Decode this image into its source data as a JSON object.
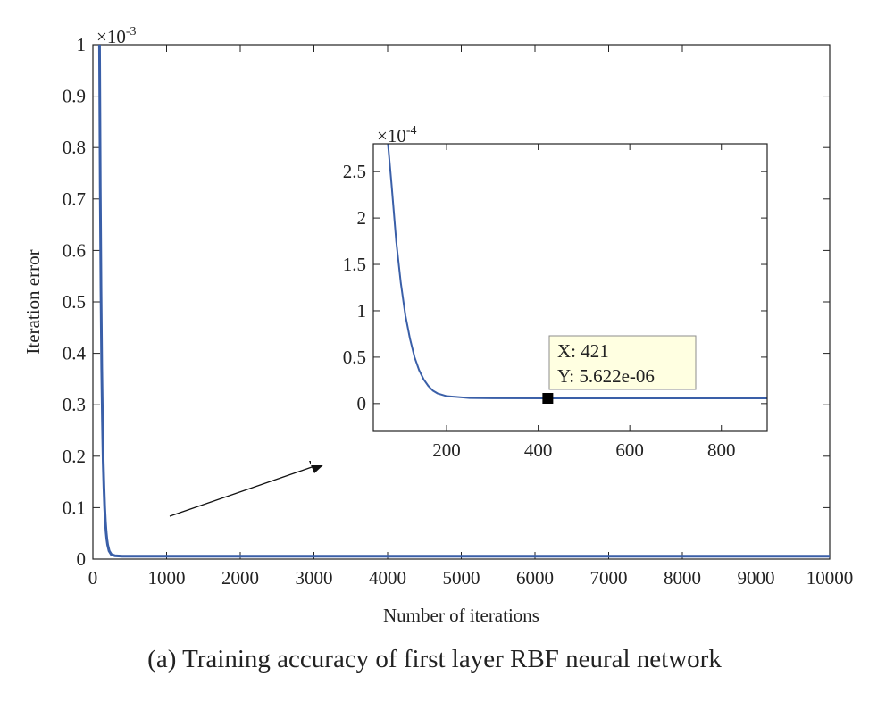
{
  "caption": "(a) Training accuracy of first layer RBF neural network",
  "colors": {
    "series": "#3a5fa8",
    "axes": "#222222",
    "datatip_bg": "#ffffe1",
    "datatip_border": "#8c8c8c",
    "datatip_marker": "#000000"
  },
  "chart_data": [
    {
      "type": "line",
      "name": "main",
      "xlabel": "Number of iterations",
      "ylabel": "Iteration error",
      "xlim": [
        0,
        10000
      ],
      "ylim": [
        0,
        1
      ],
      "y_exponent_label": "×10",
      "y_exponent": "-3",
      "x_ticks": [
        0,
        1000,
        2000,
        3000,
        4000,
        5000,
        6000,
        7000,
        8000,
        9000,
        10000
      ],
      "x_tick_labels": [
        "0",
        "1000",
        "2000",
        "3000",
        "4000",
        "5000",
        "6000",
        "7000",
        "8000",
        "9000",
        "10000"
      ],
      "y_ticks": [
        0,
        0.1,
        0.2,
        0.3,
        0.4,
        0.5,
        0.6,
        0.7,
        0.8,
        0.9,
        1
      ],
      "y_tick_labels": [
        "0",
        "0.1",
        "0.2",
        "0.3",
        "0.4",
        "0.5",
        "0.6",
        "0.7",
        "0.8",
        "0.9",
        "1"
      ],
      "grid": false,
      "series": [
        {
          "x": [
            90,
            100,
            110,
            120,
            130,
            140,
            150,
            160,
            170,
            180,
            190,
            200,
            220,
            250,
            300,
            400,
            1000,
            2000,
            3000,
            4000,
            5000,
            6000,
            7000,
            8000,
            9000,
            10000
          ],
          "y": [
            1.0,
            0.72,
            0.52,
            0.37,
            0.27,
            0.19,
            0.14,
            0.1,
            0.072,
            0.052,
            0.038,
            0.028,
            0.016,
            0.009,
            0.0065,
            0.0056,
            0.0056,
            0.0056,
            0.0056,
            0.0056,
            0.0056,
            0.0056,
            0.0056,
            0.0056,
            0.0056,
            0.0056
          ]
        }
      ]
    },
    {
      "type": "line",
      "name": "inset",
      "xlim": [
        40,
        900
      ],
      "ylim": [
        -0.3,
        2.8
      ],
      "y_exponent_label": "×10",
      "y_exponent": "-4",
      "x_ticks": [
        200,
        400,
        600,
        800
      ],
      "x_tick_labels": [
        "200",
        "400",
        "600",
        "800"
      ],
      "y_ticks": [
        0,
        0.5,
        1,
        1.5,
        2,
        2.5
      ],
      "y_tick_labels": [
        "0",
        "0.5",
        "1",
        "1.5",
        "2",
        "2.5"
      ],
      "grid": false,
      "series": [
        {
          "x": [
            72,
            80,
            90,
            100,
            110,
            120,
            130,
            140,
            150,
            160,
            170,
            180,
            200,
            250,
            300,
            421,
            600,
            900
          ],
          "y": [
            2.8,
            2.35,
            1.75,
            1.3,
            0.95,
            0.7,
            0.5,
            0.36,
            0.26,
            0.19,
            0.14,
            0.11,
            0.08,
            0.06,
            0.057,
            0.05622,
            0.0562,
            0.0562
          ]
        }
      ],
      "datatip": {
        "x": 421,
        "y": 0.05622,
        "line1": "X: 421",
        "line2": "Y: 5.622e-06"
      }
    }
  ]
}
